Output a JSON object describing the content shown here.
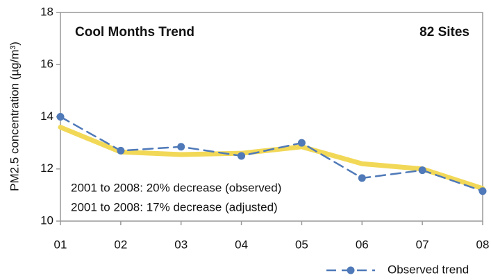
{
  "chart_data": {
    "type": "line",
    "title": "Cool Months Trend",
    "subtitle": "82 Sites",
    "y_label": "PM2.5 concentration (µg/m³)",
    "annotations": [
      "2001 to 2008: 20% decrease (observed)",
      "2001 to 2008: 17% decrease (adjusted)"
    ],
    "categories": [
      "01",
      "02",
      "03",
      "04",
      "05",
      "06",
      "07",
      "08"
    ],
    "series": [
      {
        "color": "#f2d857",
        "values": [
          13.6,
          12.65,
          12.55,
          12.6,
          12.85,
          12.2,
          12.0,
          11.25
        ]
      },
      {
        "name": "Observed trend",
        "color": "#4f79b8",
        "dashed": true,
        "markers": true,
        "values": [
          14.0,
          12.7,
          12.85,
          12.5,
          13.0,
          11.65,
          11.95,
          11.15
        ]
      }
    ],
    "ylim": [
      10,
      18
    ],
    "yticks": [
      10,
      12,
      14,
      16,
      18
    ],
    "legend": "bottom-right"
  }
}
